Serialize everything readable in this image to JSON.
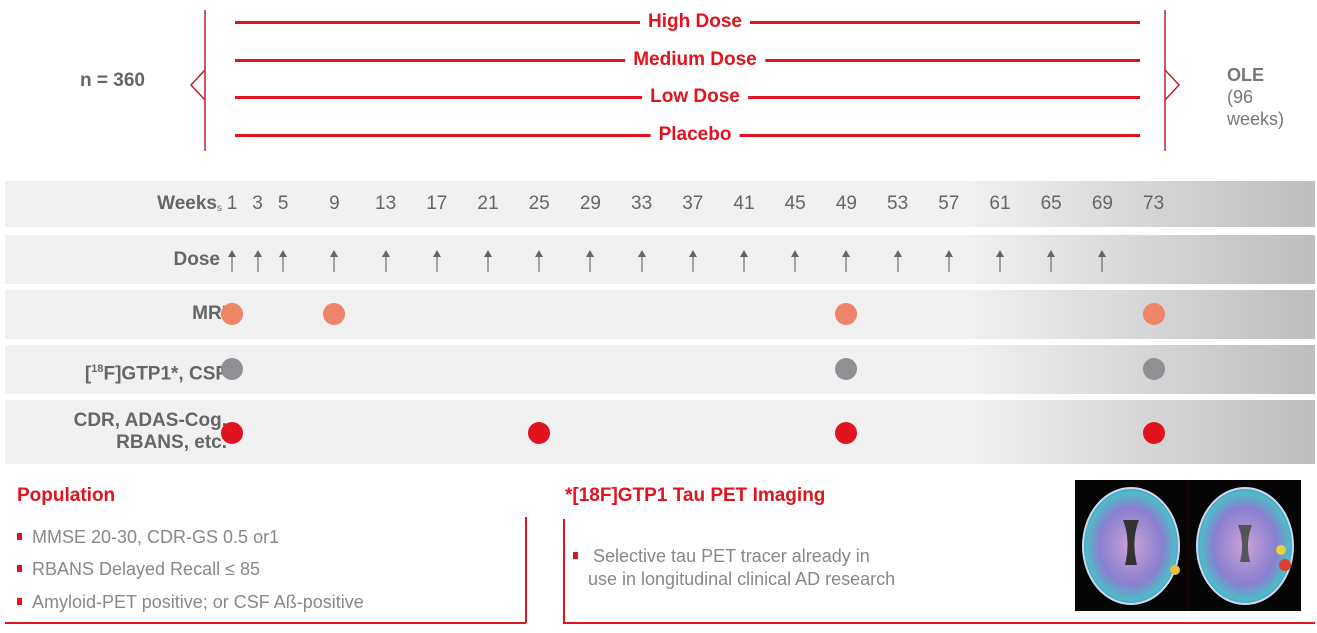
{
  "enrollment": {
    "n_label": "n = 360"
  },
  "arms": [
    "High Dose",
    "Medium Dose",
    "Low Dose",
    "Placebo"
  ],
  "extension": {
    "title": "OLE",
    "detail_line1": "(96",
    "detail_line2": "weeks)"
  },
  "schedule": {
    "weeks_label": "Weeks",
    "screening_marker": "s",
    "weeks": [
      1,
      3,
      5,
      9,
      13,
      17,
      21,
      25,
      29,
      33,
      37,
      41,
      45,
      49,
      53,
      57,
      61,
      65,
      69,
      73
    ],
    "rows": [
      {
        "label": "Dose",
        "type": "arrow",
        "weeks": [
          1,
          3,
          5,
          9,
          13,
          17,
          21,
          25,
          29,
          33,
          37,
          41,
          45,
          49,
          53,
          57,
          61,
          65,
          69
        ]
      },
      {
        "label": "MRI",
        "type": "dot",
        "color": "#ee8566",
        "weeks": [
          1,
          9,
          49,
          73
        ]
      },
      {
        "label_prefix": "[",
        "label_sup": "18",
        "label_suffix": "F]GTP1*, CSF",
        "type": "dot",
        "color": "#8f8f94",
        "weeks": [
          1,
          49,
          73
        ]
      },
      {
        "label_line1": "CDR, ADAS-Cog,",
        "label_line2": "RBANS, etc.",
        "type": "dot",
        "color": "#e0141e",
        "weeks": [
          1,
          25,
          49,
          73
        ]
      }
    ]
  },
  "population": {
    "title": "Population",
    "bullets": [
      "MMSE 20-30, CDR-GS 0.5 or1",
      "RBANS Delayed Recall ≤ 85",
      "Amyloid-PET positive; or CSF Aß-positive"
    ]
  },
  "tau_pet": {
    "title": "*[18F]GTP1 Tau PET Imaging",
    "bullet_line1": "Selective tau PET tracer already in",
    "bullet_line2": "use in longitudinal clinical AD research",
    "image": "brain-tau-pet-scans"
  },
  "colors": {
    "accent": "#e0141e",
    "text": "#666666",
    "band": "#f1f1f1"
  }
}
